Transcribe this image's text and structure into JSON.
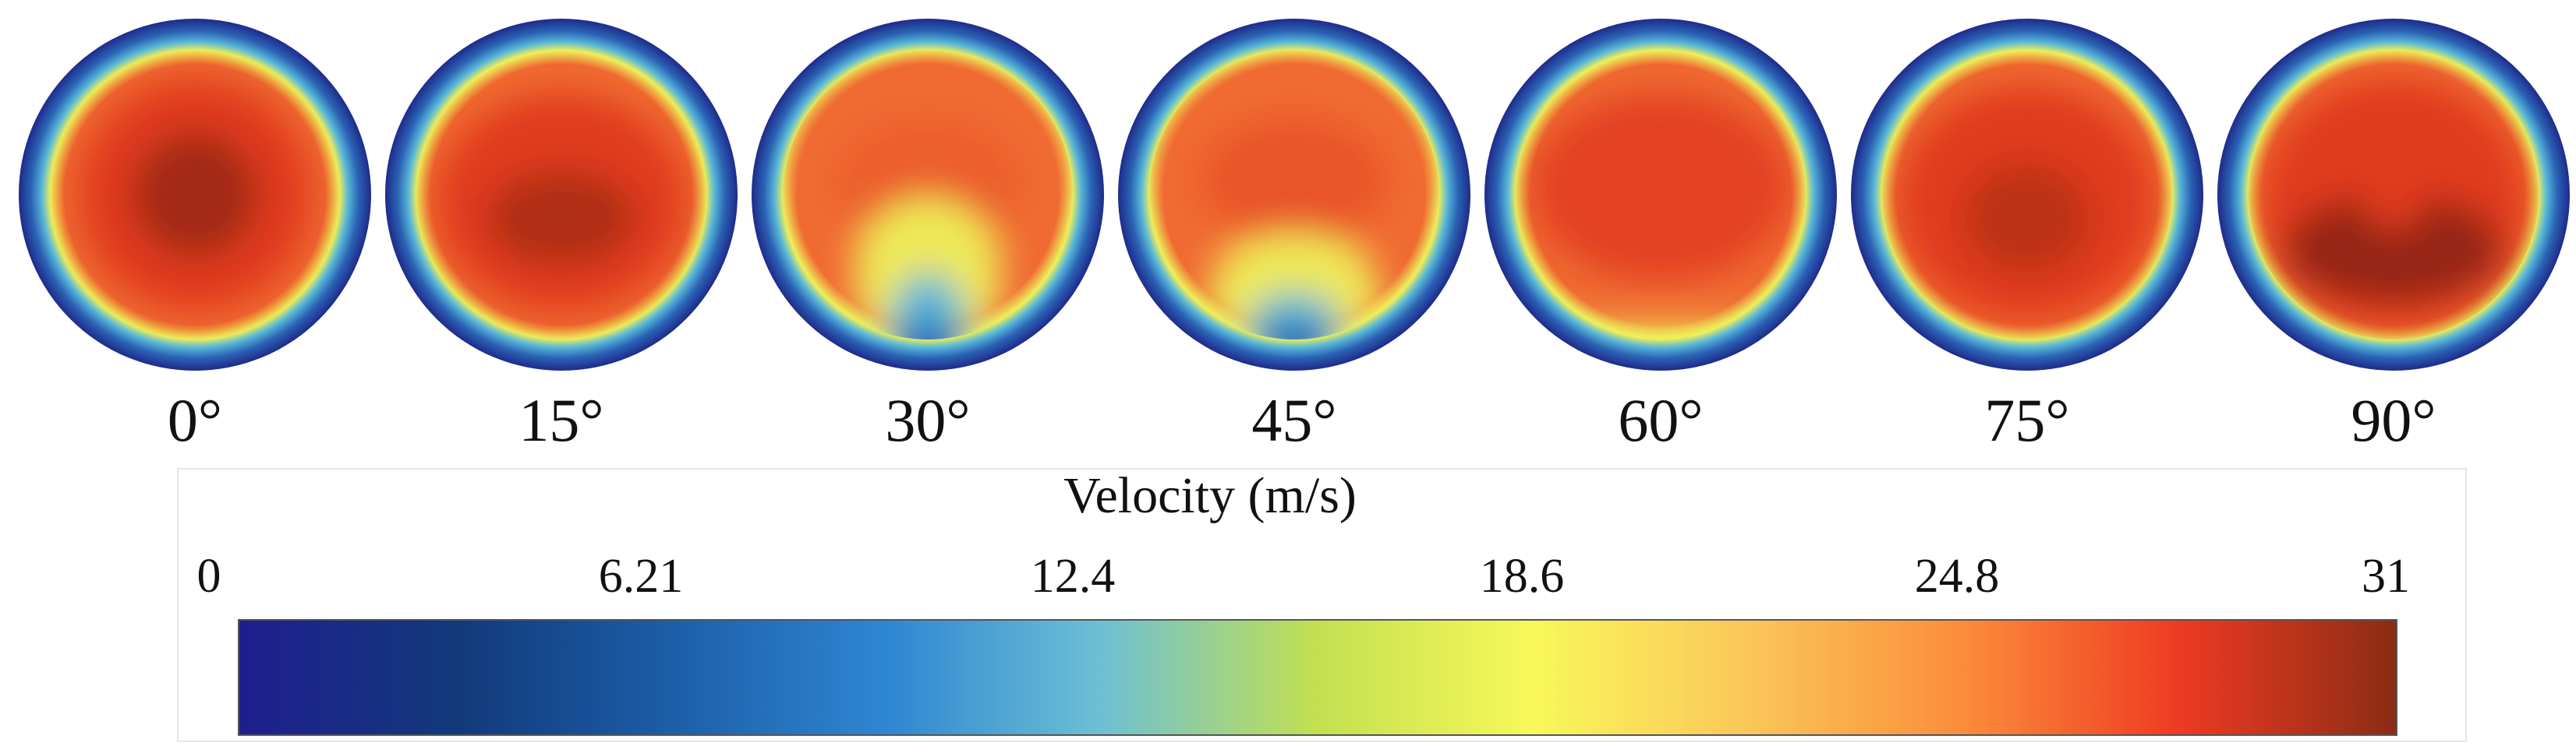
{
  "figure": {
    "panels": [
      {
        "label": "0°",
        "core": "bullseye"
      },
      {
        "label": "15°",
        "core": "low-offset"
      },
      {
        "label": "30°",
        "core": "upper-with-bottom-jet"
      },
      {
        "label": "45°",
        "core": "upper-with-bottom-jet-weak"
      },
      {
        "label": "60°",
        "core": "flat-upper"
      },
      {
        "label": "75°",
        "core": "centered-broad"
      },
      {
        "label": "90°",
        "core": "low-crescent"
      }
    ],
    "legend": {
      "title": "Velocity (m/s)",
      "ticks": [
        "0",
        "6.21",
        "12.4",
        "18.6",
        "24.8",
        "31"
      ],
      "min": 0,
      "max": 31,
      "colormap": [
        "#1f1e8f",
        "#12397a",
        "#1c5ea8",
        "#2f86d2",
        "#6dc0d4",
        "#c3e050",
        "#f8f85a",
        "#fbc65a",
        "#fb8c3a",
        "#ee3a22",
        "#8b2c14"
      ]
    },
    "colors": {
      "ring_outer": "#1f2a8a",
      "ring_blue": "#2a63b5",
      "ring_cyan": "#57b6d8",
      "ring_yellow": "#eef05a",
      "core_orange": "#f06a32",
      "core_red": "#e03b1f",
      "core_dark": "#8e2412"
    }
  }
}
